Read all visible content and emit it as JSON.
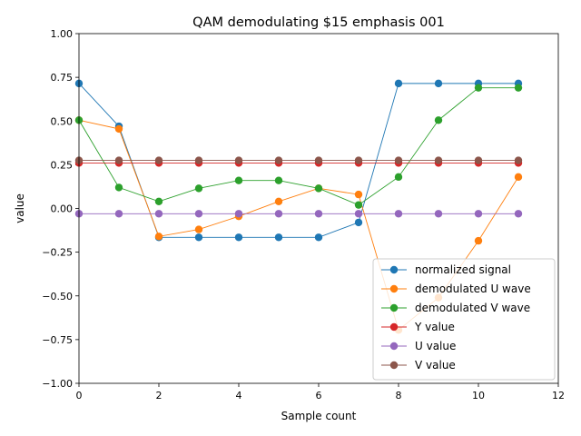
{
  "chart_data": {
    "type": "line",
    "title": "QAM demodulating $15 emphasis 001",
    "xlabel": "Sample count",
    "ylabel": "value",
    "xlim": [
      0,
      12
    ],
    "ylim": [
      -1.0,
      1.0
    ],
    "xticks": [
      0,
      2,
      4,
      6,
      8,
      10,
      12
    ],
    "xtick_labels": [
      "0",
      "2",
      "4",
      "6",
      "8",
      "10",
      "12"
    ],
    "yticks": [
      -1.0,
      -0.75,
      -0.5,
      -0.25,
      0.0,
      0.25,
      0.5,
      0.75,
      1.0
    ],
    "ytick_labels": [
      "−1.00",
      "−0.75",
      "−0.50",
      "−0.25",
      "0.00",
      "0.25",
      "0.50",
      "0.75",
      "1.00"
    ],
    "grid": false,
    "legend_position": "bottom-right",
    "x": [
      0,
      1,
      2,
      3,
      4,
      5,
      6,
      7,
      8,
      9,
      10,
      11
    ],
    "series": [
      {
        "name": "normalized signal",
        "color": "#1f77b4",
        "values": [
          0.715,
          0.47,
          -0.165,
          -0.165,
          -0.165,
          -0.165,
          -0.165,
          -0.08,
          0.715,
          0.715,
          0.715,
          0.715
        ]
      },
      {
        "name": "demodulated U wave",
        "color": "#ff7f0e",
        "values": [
          0.505,
          0.455,
          -0.16,
          -0.12,
          -0.045,
          0.04,
          0.115,
          0.08,
          -0.695,
          -0.51,
          -0.185,
          0.18
        ]
      },
      {
        "name": "demodulated V wave",
        "color": "#2ca02c",
        "values": [
          0.505,
          0.12,
          0.04,
          0.115,
          0.16,
          0.16,
          0.115,
          0.02,
          0.18,
          0.505,
          0.69,
          0.69
        ]
      },
      {
        "name": "Y value",
        "color": "#d62728",
        "values": [
          0.26,
          0.26,
          0.26,
          0.26,
          0.26,
          0.26,
          0.26,
          0.26,
          0.26,
          0.26,
          0.26,
          0.26
        ]
      },
      {
        "name": "U value",
        "color": "#9467bd",
        "values": [
          -0.03,
          -0.03,
          -0.03,
          -0.03,
          -0.03,
          -0.03,
          -0.03,
          -0.03,
          -0.03,
          -0.03,
          -0.03,
          -0.03
        ]
      },
      {
        "name": "V value",
        "color": "#8c564b",
        "values": [
          0.275,
          0.275,
          0.275,
          0.275,
          0.275,
          0.275,
          0.275,
          0.275,
          0.275,
          0.275,
          0.275,
          0.275
        ]
      }
    ]
  }
}
